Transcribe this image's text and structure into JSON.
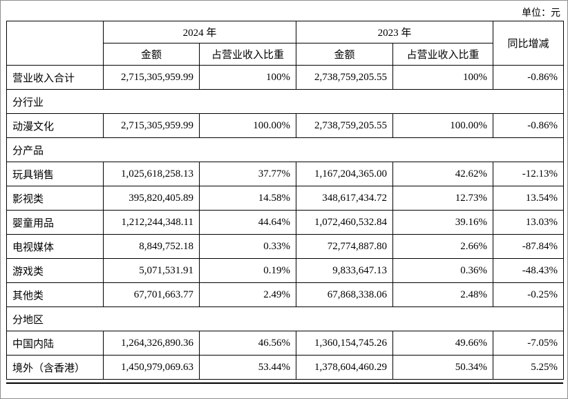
{
  "page": {
    "unit_label": "单位：元"
  },
  "table": {
    "header": {
      "year_2024": "2024 年",
      "year_2023": "2023 年",
      "yoy": "同比增减",
      "amount": "金额",
      "ratio": "占营业收入比重"
    },
    "rows": [
      {
        "label": "营业收入合计",
        "amount_2024": "2,715,305,959.99",
        "ratio_2024": "100%",
        "amount_2023": "2,738,759,205.55",
        "ratio_2023": "100%",
        "yoy": "-0.86%"
      },
      {
        "section": "分行业"
      },
      {
        "label": "动漫文化",
        "amount_2024": "2,715,305,959.99",
        "ratio_2024": "100.00%",
        "amount_2023": "2,738,759,205.55",
        "ratio_2023": "100.00%",
        "yoy": "-0.86%"
      },
      {
        "section": "分产品"
      },
      {
        "label": "玩具销售",
        "amount_2024": "1,025,618,258.13",
        "ratio_2024": "37.77%",
        "amount_2023": "1,167,204,365.00",
        "ratio_2023": "42.62%",
        "yoy": "-12.13%"
      },
      {
        "label": "影视类",
        "amount_2024": "395,820,405.89",
        "ratio_2024": "14.58%",
        "amount_2023": "348,617,434.72",
        "ratio_2023": "12.73%",
        "yoy": "13.54%"
      },
      {
        "label": "婴童用品",
        "amount_2024": "1,212,244,348.11",
        "ratio_2024": "44.64%",
        "amount_2023": "1,072,460,532.84",
        "ratio_2023": "39.16%",
        "yoy": "13.03%"
      },
      {
        "label": "电视媒体",
        "amount_2024": "8,849,752.18",
        "ratio_2024": "0.33%",
        "amount_2023": "72,774,887.80",
        "ratio_2023": "2.66%",
        "yoy": "-87.84%"
      },
      {
        "label": "游戏类",
        "amount_2024": "5,071,531.91",
        "ratio_2024": "0.19%",
        "amount_2023": "9,833,647.13",
        "ratio_2023": "0.36%",
        "yoy": "-48.43%"
      },
      {
        "label": "其他类",
        "amount_2024": "67,701,663.77",
        "ratio_2024": "2.49%",
        "amount_2023": "67,868,338.06",
        "ratio_2023": "2.48%",
        "yoy": "-0.25%"
      },
      {
        "section": "分地区"
      },
      {
        "label": "中国内陆",
        "amount_2024": "1,264,326,890.36",
        "ratio_2024": "46.56%",
        "amount_2023": "1,360,154,745.26",
        "ratio_2023": "49.66%",
        "yoy": "-7.05%"
      },
      {
        "label": "境外（含香港）",
        "amount_2024": "1,450,979,069.63",
        "ratio_2024": "53.44%",
        "amount_2023": "1,378,604,460.29",
        "ratio_2023": "50.34%",
        "yoy": "5.25%"
      }
    ]
  }
}
